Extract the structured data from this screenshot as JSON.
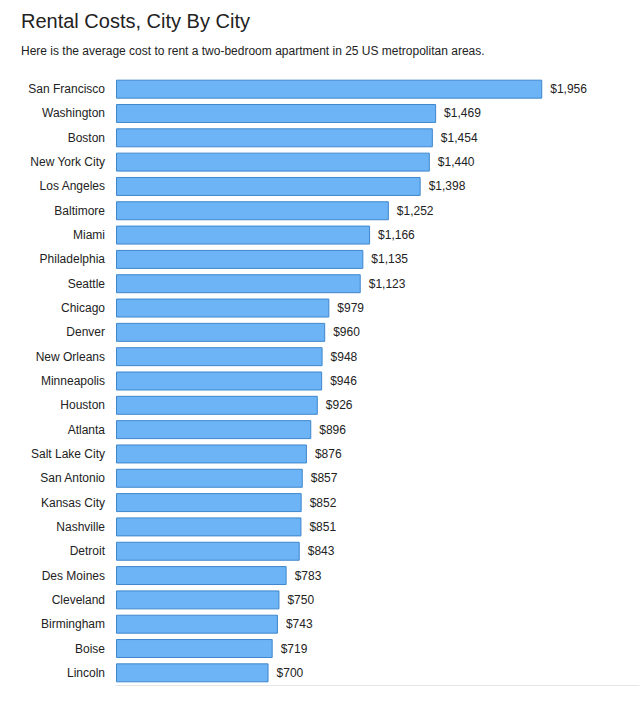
{
  "chart_data": {
    "type": "bar",
    "orientation": "horizontal",
    "title": "Rental Costs, City By City",
    "subtitle": "Here is the average cost to rent a two-bedroom apartment in 25 US metropolitan areas.",
    "categories": [
      "San Francisco",
      "Washington",
      "Boston",
      "New York City",
      "Los Angeles",
      "Baltimore",
      "Miami",
      "Philadelphia",
      "Seattle",
      "Chicago",
      "Denver",
      "New Orleans",
      "Minneapolis",
      "Houston",
      "Atlanta",
      "Salt Lake City",
      "San Antonio",
      "Kansas City",
      "Nashville",
      "Detroit",
      "Des Moines",
      "Cleveland",
      "Birmingham",
      "Boise",
      "Lincoln"
    ],
    "values": [
      1956,
      1469,
      1454,
      1440,
      1398,
      1252,
      1166,
      1135,
      1123,
      979,
      960,
      948,
      946,
      926,
      896,
      876,
      857,
      852,
      851,
      843,
      783,
      750,
      743,
      719,
      700
    ],
    "value_labels": [
      "$1,956",
      "$1,469",
      "$1,454",
      "$1,440",
      "$1,398",
      "$1,252",
      "$1,166",
      "$1,135",
      "$1,123",
      "$979",
      "$960",
      "$948",
      "$946",
      "$926",
      "$896",
      "$876",
      "$857",
      "$852",
      "$851",
      "$843",
      "$783",
      "$750",
      "$743",
      "$719",
      "$700"
    ],
    "color": "#6cb4f5",
    "xlim": [
      0,
      2400
    ],
    "data_labels": true,
    "tick_labels": "y",
    "grid": false
  }
}
